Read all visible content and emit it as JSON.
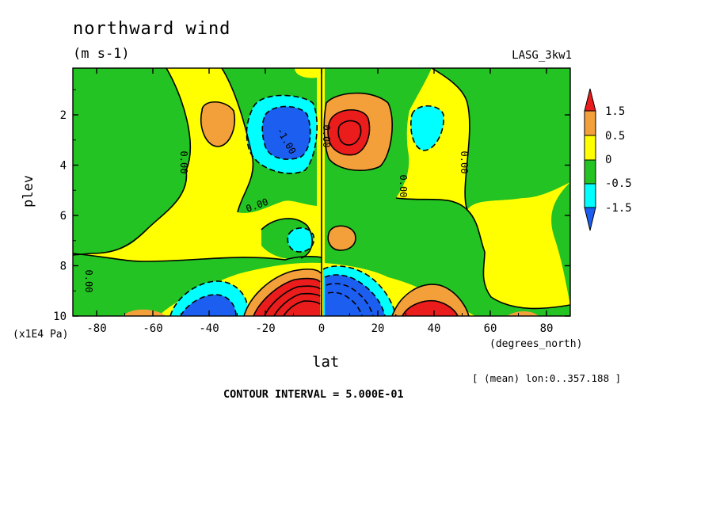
{
  "title": "northward wind",
  "units": "(m s-1)",
  "dataset": "LASG_3kw1",
  "vertical_units": "(x1E4 Pa)",
  "x_units": "(degrees_north)",
  "xlabel": "lat",
  "ylabel": "plev",
  "footer": "[ (mean) lon:0..357.188 ]",
  "contour_interval": "CONTOUR INTERVAL = 5.000E-01",
  "colors": {
    "red": "#ea1c1c",
    "orange": "#f3a03a",
    "yellow": "#ffff00",
    "green": "#22c322",
    "cyan": "#00ffff",
    "blue": "#1c5ef0"
  },
  "chart_data": {
    "type": "heatmap",
    "title": "northward wind",
    "subtitle": "(m s-1)",
    "xlabel": "lat",
    "ylabel": "plev",
    "xlim": [
      -88,
      88
    ],
    "ylim": [
      10,
      0.2
    ],
    "x_ticks": [
      "-80",
      "-60",
      "-40",
      "-20",
      "0",
      "20",
      "40",
      "60",
      "80"
    ],
    "x_tick_values": [
      -80,
      -60,
      -40,
      -20,
      0,
      20,
      40,
      60,
      80
    ],
    "y_ticks": [
      "2",
      "4",
      "6",
      "8",
      "10"
    ],
    "y_tick_values": [
      2,
      4,
      6,
      8,
      10
    ],
    "contour_interval": 0.5,
    "colorbar": {
      "labels": [
        "1.5",
        "0.5",
        "0",
        "-0.5",
        "-1.5"
      ],
      "bins": [
        {
          "range": ">1.5",
          "color": "#ea1c1c"
        },
        {
          "range": "0.5 to 1.5",
          "color": "#f3a03a"
        },
        {
          "range": "0 to 0.5",
          "color": "#ffff00"
        },
        {
          "range": "-0.5 to 0",
          "color": "#22c322"
        },
        {
          "range": "-1.5 to -0.5",
          "color": "#00ffff"
        },
        {
          "range": "<-1.5",
          "color": "#1c5ef0"
        }
      ]
    },
    "contour_labels": [
      "0.00",
      "0.00",
      "0.00",
      "0.00",
      "0.00",
      "0.00",
      "-1.00"
    ],
    "features": [
      {
        "lat": 8,
        "plev": 2.8,
        "value": 2.0,
        "sign": "positive max upper"
      },
      {
        "lat": -10,
        "plev": 2.8,
        "value": -2.0,
        "sign": "negative min upper"
      },
      {
        "lat": -10,
        "plev": 9.7,
        "value": 4.0,
        "sign": "positive max lower"
      },
      {
        "lat": 5,
        "plev": 9.6,
        "value": -4.0,
        "sign": "negative min lower"
      },
      {
        "lat": 40,
        "plev": 9.8,
        "value": 2.0,
        "sign": "positive max lower"
      },
      {
        "lat": -45,
        "plev": 9.8,
        "value": -2.0,
        "sign": "negative min lower"
      }
    ]
  }
}
